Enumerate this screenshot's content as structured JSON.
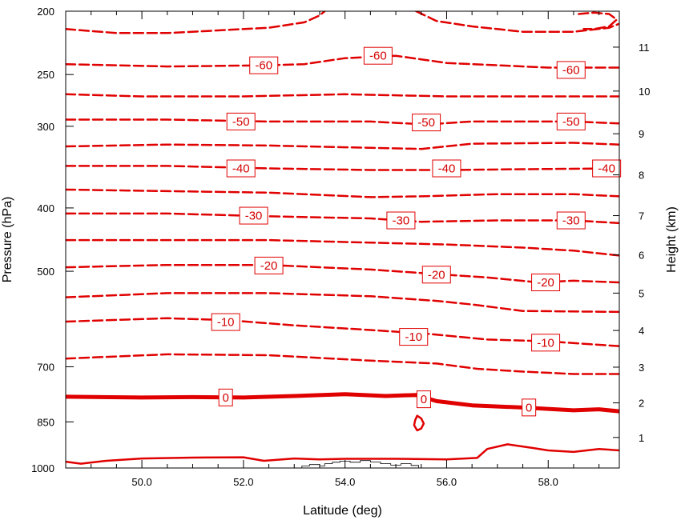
{
  "chart_data": {
    "type": "contour",
    "title": "",
    "xlabel": "Latitude (deg)",
    "ylabel": "Pressure (hPa)",
    "y2label": "Height (km)",
    "xlim": [
      48.5,
      59.4
    ],
    "ylim": [
      1000,
      200
    ],
    "y_scale": "log",
    "grid": false,
    "line_color": "#e00000",
    "x_ticks": [
      "50.0",
      "52.0",
      "54.0",
      "56.0",
      "58.0"
    ],
    "x_tick_values": [
      50,
      52,
      54,
      56,
      58
    ],
    "x_minor_ticks": [
      48.5,
      49,
      49.5,
      50.5,
      51,
      51.5,
      52.5,
      53,
      53.5,
      54.5,
      55,
      55.5,
      56.5,
      57,
      57.5,
      58.5,
      59
    ],
    "y_ticks": [
      "200",
      "250",
      "300",
      "400",
      "500",
      "700",
      "850",
      "1000"
    ],
    "y_tick_values": [
      200,
      250,
      300,
      400,
      500,
      700,
      850,
      1000
    ],
    "y2_ticks": [
      "1",
      "2",
      "3",
      "4",
      "5",
      "6",
      "7",
      "8",
      "9",
      "10",
      "11"
    ],
    "y2_tick_pressures": [
      898,
      795,
      701,
      616,
      540,
      472,
      411,
      356,
      308,
      265,
      227
    ],
    "contours": [
      {
        "level": -66,
        "labeled": false,
        "dashed": true,
        "points": [
          [
            48.5,
            213
          ],
          [
            49.5,
            216
          ],
          [
            50.5,
            216
          ],
          [
            51.5,
            214
          ],
          [
            52.5,
            212
          ],
          [
            53.2,
            208
          ],
          [
            53.5,
            203
          ],
          [
            53.6,
            200
          ]
        ],
        "labels": []
      },
      {
        "level": -66,
        "labeled": false,
        "dashed": true,
        "points": [
          [
            55.4,
            200
          ],
          [
            55.8,
            207
          ],
          [
            56.5,
            211
          ],
          [
            57.5,
            215
          ],
          [
            58.5,
            215
          ],
          [
            59.2,
            212
          ],
          [
            59.4,
            209
          ]
        ],
        "labels": []
      },
      {
        "level": -64,
        "labeled": false,
        "dashed": true,
        "points": [
          [
            58.6,
            202
          ],
          [
            58.9,
            201
          ],
          [
            59.2,
            202
          ],
          [
            59.35,
            206
          ],
          [
            59.2,
            211
          ],
          [
            58.9,
            213
          ],
          [
            58.7,
            213
          ]
        ],
        "labels": []
      },
      {
        "level": -60,
        "labeled": true,
        "dashed": true,
        "points": [
          [
            48.5,
            241
          ],
          [
            50.5,
            243
          ],
          [
            52.5,
            242
          ],
          [
            53.2,
            241
          ],
          [
            54,
            236
          ],
          [
            55,
            234
          ],
          [
            55.5,
            237
          ],
          [
            56,
            240
          ],
          [
            57,
            242
          ],
          [
            58,
            244
          ],
          [
            59.4,
            244
          ]
        ],
        "labels": [
          {
            "text": "-60",
            "x": 52.4,
            "y": 242
          },
          {
            "text": "-60",
            "x": 54.65,
            "y": 234
          },
          {
            "text": "-60",
            "x": 58.45,
            "y": 246
          }
        ]
      },
      {
        "level": -55,
        "labeled": false,
        "dashed": true,
        "points": [
          [
            48.5,
            268
          ],
          [
            50,
            270
          ],
          [
            52,
            270
          ],
          [
            54,
            268
          ],
          [
            56,
            270
          ],
          [
            58,
            270
          ],
          [
            59.4,
            270
          ]
        ],
        "labels": []
      },
      {
        "level": -50,
        "labeled": true,
        "dashed": true,
        "points": [
          [
            48.5,
            293
          ],
          [
            50.5,
            293
          ],
          [
            52.5,
            295
          ],
          [
            54.5,
            295
          ],
          [
            55.6,
            298
          ],
          [
            56.5,
            295
          ],
          [
            58.5,
            295
          ],
          [
            59.4,
            297
          ]
        ],
        "labels": [
          {
            "text": "-50",
            "x": 51.95,
            "y": 295
          },
          {
            "text": "-50",
            "x": 55.6,
            "y": 296
          },
          {
            "text": "-50",
            "x": 58.45,
            "y": 295
          }
        ]
      },
      {
        "level": -45,
        "labeled": false,
        "dashed": true,
        "points": [
          [
            48.5,
            322
          ],
          [
            50.5,
            320
          ],
          [
            52.5,
            321
          ],
          [
            54,
            323
          ],
          [
            55.5,
            325
          ],
          [
            56.5,
            319
          ],
          [
            58.5,
            318
          ],
          [
            59.4,
            320
          ]
        ],
        "labels": []
      },
      {
        "level": -40,
        "labeled": true,
        "dashed": true,
        "points": [
          [
            48.5,
            345
          ],
          [
            50.5,
            345
          ],
          [
            52.5,
            348
          ],
          [
            54.5,
            350
          ],
          [
            56,
            350
          ],
          [
            57.5,
            349
          ],
          [
            59.4,
            348
          ]
        ],
        "labels": [
          {
            "text": "-40",
            "x": 51.95,
            "y": 348
          },
          {
            "text": "-40",
            "x": 56.0,
            "y": 348
          },
          {
            "text": "-40",
            "x": 59.15,
            "y": 348
          }
        ]
      },
      {
        "level": -35,
        "labeled": false,
        "dashed": true,
        "points": [
          [
            48.5,
            375
          ],
          [
            50.5,
            377
          ],
          [
            52.5,
            379
          ],
          [
            54.5,
            385
          ],
          [
            55.5,
            384
          ],
          [
            57,
            381
          ],
          [
            58.5,
            381
          ],
          [
            59.4,
            384
          ]
        ],
        "labels": []
      },
      {
        "level": -30,
        "labeled": true,
        "dashed": true,
        "points": [
          [
            48.5,
            408
          ],
          [
            50.5,
            408
          ],
          [
            52.5,
            412
          ],
          [
            54.5,
            415
          ],
          [
            55.5,
            420
          ],
          [
            57,
            418
          ],
          [
            58.5,
            418
          ],
          [
            59.4,
            422
          ]
        ],
        "labels": [
          {
            "text": "-30",
            "x": 52.2,
            "y": 411
          },
          {
            "text": "-30",
            "x": 55.1,
            "y": 418
          },
          {
            "text": "-30",
            "x": 58.45,
            "y": 418
          }
        ]
      },
      {
        "level": -25,
        "labeled": false,
        "dashed": true,
        "points": [
          [
            48.5,
            448
          ],
          [
            50.5,
            448
          ],
          [
            52.5,
            448
          ],
          [
            54.5,
            452
          ],
          [
            56,
            455
          ],
          [
            57.5,
            460
          ],
          [
            58.5,
            465
          ],
          [
            59.4,
            473
          ]
        ],
        "labels": []
      },
      {
        "level": -20,
        "labeled": true,
        "dashed": true,
        "points": [
          [
            48.5,
            493
          ],
          [
            50.5,
            489
          ],
          [
            52.5,
            489
          ],
          [
            54.5,
            497
          ],
          [
            55.8,
            505
          ],
          [
            56.8,
            511
          ],
          [
            57.8,
            520
          ],
          [
            58.5,
            517
          ],
          [
            59.4,
            520
          ]
        ],
        "labels": [
          {
            "text": "-20",
            "x": 52.5,
            "y": 490
          },
          {
            "text": "-20",
            "x": 55.8,
            "y": 506
          },
          {
            "text": "-20",
            "x": 57.95,
            "y": 520
          }
        ]
      },
      {
        "level": -15,
        "labeled": false,
        "dashed": true,
        "points": [
          [
            48.5,
            548
          ],
          [
            50.5,
            540
          ],
          [
            52.5,
            540
          ],
          [
            54.5,
            546
          ],
          [
            55.8,
            555
          ],
          [
            56.5,
            562
          ],
          [
            57.5,
            575
          ],
          [
            59.4,
            577
          ]
        ],
        "labels": []
      },
      {
        "level": -10,
        "labeled": true,
        "dashed": true,
        "points": [
          [
            48.5,
            597
          ],
          [
            50.5,
            590
          ],
          [
            51.7,
            594
          ],
          [
            53,
            605
          ],
          [
            54.5,
            615
          ],
          [
            55.6,
            623
          ],
          [
            56.8,
            636
          ],
          [
            58,
            640
          ],
          [
            59.4,
            651
          ]
        ],
        "labels": [
          {
            "text": "-10",
            "x": 51.65,
            "y": 598
          },
          {
            "text": "-10",
            "x": 55.35,
            "y": 630
          },
          {
            "text": "-10",
            "x": 57.95,
            "y": 643
          }
        ]
      },
      {
        "level": -5,
        "labeled": false,
        "dashed": true,
        "points": [
          [
            48.5,
            680
          ],
          [
            50.5,
            670
          ],
          [
            52.5,
            672
          ],
          [
            54.5,
            685
          ],
          [
            55.8,
            692
          ],
          [
            56.6,
            705
          ],
          [
            57.5,
            712
          ],
          [
            58.5,
            718
          ],
          [
            59.4,
            718
          ]
        ],
        "labels": []
      },
      {
        "level": 0,
        "labeled": true,
        "dashed": false,
        "thick": true,
        "points": [
          [
            48.5,
            778
          ],
          [
            50,
            780
          ],
          [
            51,
            779
          ],
          [
            52,
            780
          ],
          [
            53,
            776
          ],
          [
            54,
            771
          ],
          [
            54.8,
            776
          ],
          [
            55.4,
            773
          ],
          [
            55.8,
            790
          ],
          [
            56.5,
            802
          ],
          [
            57.5,
            808
          ],
          [
            58.5,
            816
          ],
          [
            59,
            813
          ],
          [
            59.4,
            819
          ]
        ],
        "labels": [
          {
            "text": "0",
            "x": 51.65,
            "y": 780
          },
          {
            "text": "0",
            "x": 55.55,
            "y": 785
          },
          {
            "text": "0",
            "x": 57.62,
            "y": 808
          }
        ]
      },
      {
        "level": 0,
        "labeled": false,
        "dashed": false,
        "thick": false,
        "points": [
          [
            55.42,
            832
          ],
          [
            55.5,
            840
          ],
          [
            55.55,
            855
          ],
          [
            55.5,
            870
          ],
          [
            55.42,
            876
          ],
          [
            55.36,
            860
          ],
          [
            55.38,
            845
          ],
          [
            55.42,
            832
          ]
        ],
        "labels": []
      },
      {
        "level": 5,
        "labeled": false,
        "dashed": false,
        "thick": false,
        "points": [
          [
            48.5,
            978
          ],
          [
            48.8,
            985
          ],
          [
            49.3,
            975
          ],
          [
            50,
            967
          ],
          [
            51,
            964
          ],
          [
            52,
            963
          ],
          [
            52.4,
            975
          ],
          [
            53,
            967
          ],
          [
            53.5,
            970
          ],
          [
            54,
            968
          ],
          [
            55,
            968
          ],
          [
            56,
            970
          ],
          [
            56.6,
            965
          ],
          [
            56.8,
            935
          ],
          [
            57.2,
            920
          ],
          [
            57.7,
            932
          ],
          [
            58,
            940
          ],
          [
            58.5,
            945
          ],
          [
            59,
            935
          ],
          [
            59.4,
            940
          ]
        ],
        "labels": []
      }
    ],
    "terrain_outline": [
      [
        53.15,
        1000
      ],
      [
        53.15,
        993
      ],
      [
        53.3,
        993
      ],
      [
        53.3,
        988
      ],
      [
        53.5,
        988
      ],
      [
        53.5,
        993
      ],
      [
        53.6,
        993
      ],
      [
        53.6,
        985
      ],
      [
        53.75,
        985
      ],
      [
        53.75,
        980
      ],
      [
        53.9,
        980
      ],
      [
        53.9,
        976
      ],
      [
        54.1,
        976
      ],
      [
        54.1,
        980
      ],
      [
        54.3,
        980
      ],
      [
        54.3,
        974
      ],
      [
        54.5,
        974
      ],
      [
        54.5,
        979
      ],
      [
        54.7,
        979
      ],
      [
        54.7,
        985
      ],
      [
        54.9,
        985
      ],
      [
        54.9,
        990
      ],
      [
        55.1,
        990
      ],
      [
        55.1,
        985
      ],
      [
        55.3,
        985
      ],
      [
        55.3,
        991
      ],
      [
        55.45,
        991
      ],
      [
        55.45,
        1000
      ]
    ]
  }
}
